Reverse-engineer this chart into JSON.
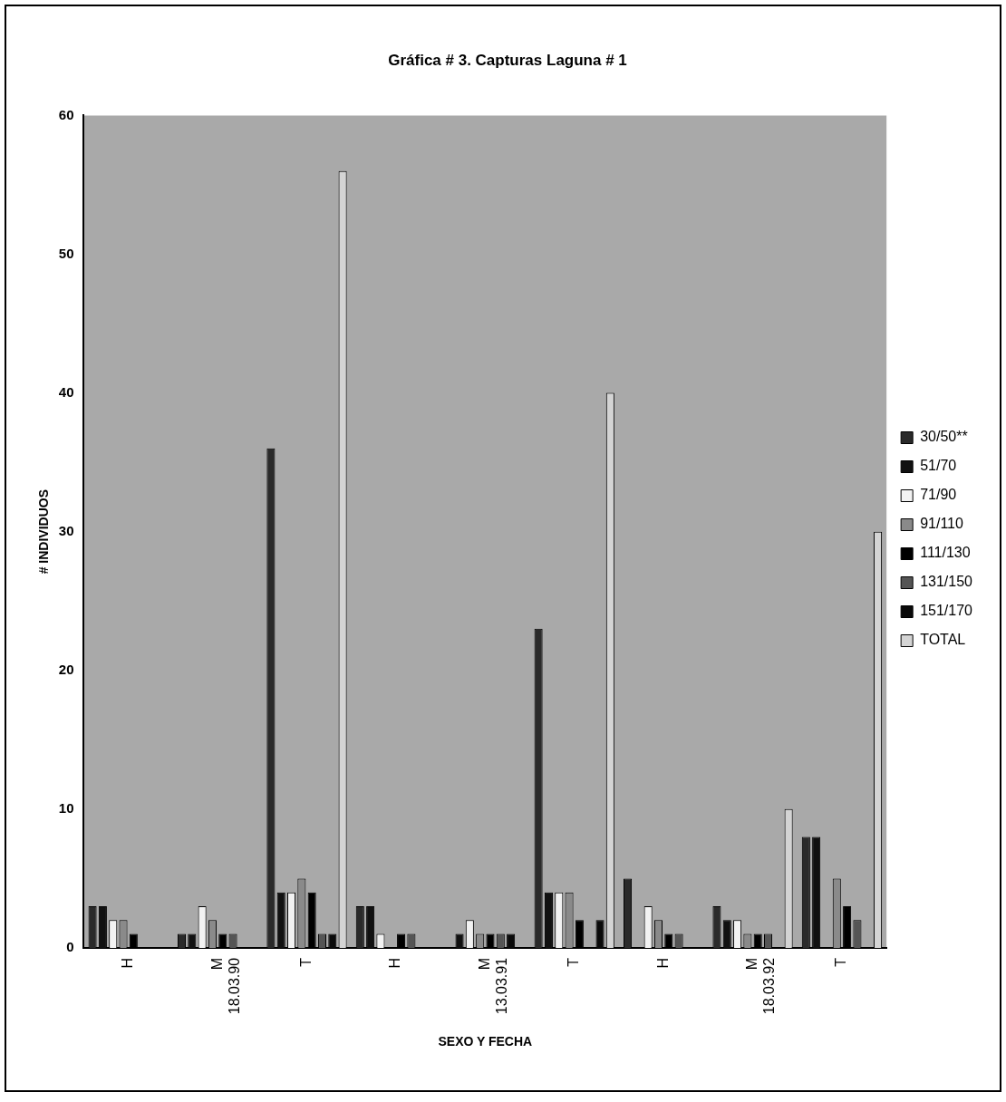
{
  "chart_data": {
    "type": "bar",
    "title": "Gráfica # 3. Capturas Laguna # 1",
    "xlabel": "SEXO Y FECHA",
    "ylabel": "# INDIVIDUOS",
    "categories": [
      "H",
      "M\n18.03.90",
      "T",
      "H",
      "M\n13.03.91",
      "T",
      "H",
      "M\n18.03.92",
      "T"
    ],
    "series": [
      {
        "name": "30/50**",
        "color": "#2a2a2a",
        "values": [
          3,
          1,
          36,
          3,
          0,
          23,
          5,
          3,
          8
        ]
      },
      {
        "name": "51/70",
        "color": "#111111",
        "values": [
          3,
          1,
          4,
          3,
          1,
          4,
          0,
          2,
          8
        ]
      },
      {
        "name": "71/90",
        "color": "#f2f2f2",
        "values": [
          2,
          3,
          4,
          1,
          2,
          4,
          3,
          2,
          0
        ]
      },
      {
        "name": "91/110",
        "color": "#8a8a8a",
        "values": [
          2,
          2,
          5,
          0,
          1,
          4,
          2,
          1,
          5
        ]
      },
      {
        "name": "111/130",
        "color": "#000000",
        "values": [
          1,
          1,
          4,
          1,
          1,
          2,
          1,
          1,
          3
        ]
      },
      {
        "name": "131/150",
        "color": "#555555",
        "values": [
          0,
          1,
          1,
          1,
          1,
          0,
          1,
          1,
          2
        ]
      },
      {
        "name": "151/170",
        "color": "#0a0a0a",
        "values": [
          0,
          0,
          1,
          0,
          1,
          2,
          0,
          0,
          0
        ]
      },
      {
        "name": "TOTAL",
        "color": "#d4d4d4",
        "values": [
          0,
          0,
          56,
          0,
          0,
          40,
          0,
          10,
          30
        ]
      }
    ],
    "ylim": [
      0,
      60
    ],
    "yticks": [
      0,
      10,
      20,
      30,
      40,
      50,
      60
    ],
    "grid": false,
    "legend": "right"
  }
}
